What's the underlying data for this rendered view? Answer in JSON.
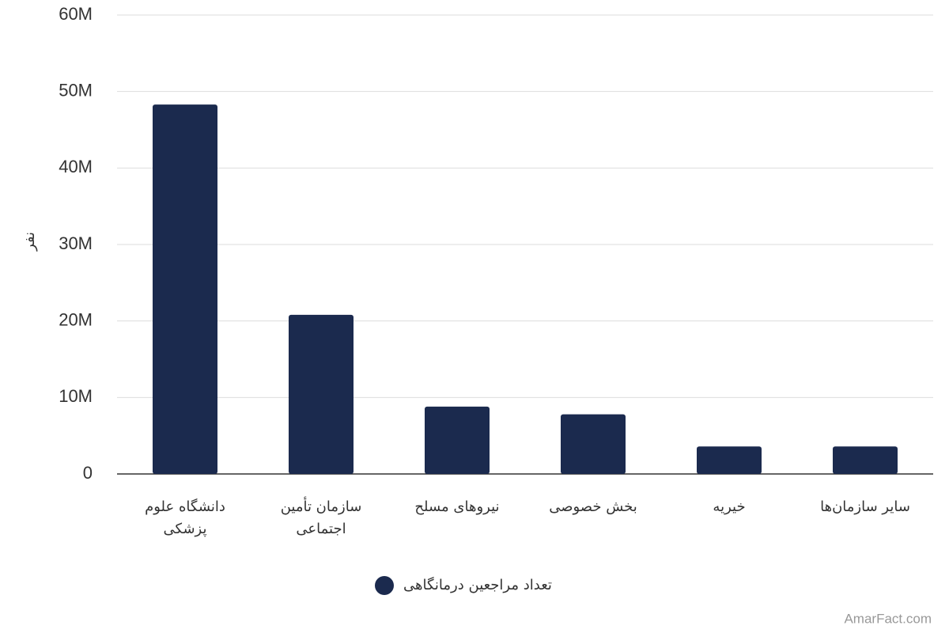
{
  "chart_data": {
    "type": "bar",
    "y_label": "نفر",
    "categories": [
      "دانشگاه علوم پزشکی",
      "سازمان تأمین اجتماعی",
      "نیروهای مسلح",
      "بخش خصوصی",
      "خیریه",
      "سایر سازمان‌ها"
    ],
    "series": [
      {
        "name": "تعداد مراجعین درمانگاهی",
        "color": "#1b2a4e",
        "values": [
          48300000,
          20800000,
          8800000,
          7800000,
          3600000,
          3600000
        ]
      }
    ],
    "ylim": [
      0,
      60000000
    ],
    "yticks": [
      0,
      {
        "value": 10000000,
        "label": "10M"
      },
      {
        "value": 20000000,
        "label": "20M"
      },
      {
        "value": 30000000,
        "label": "30M"
      },
      {
        "value": 40000000,
        "label": "40M"
      },
      {
        "value": 50000000,
        "label": "50M"
      },
      {
        "value": 60000000,
        "label": "60M"
      }
    ],
    "grid": true
  },
  "footer": {
    "source": "AmarFact.com"
  }
}
